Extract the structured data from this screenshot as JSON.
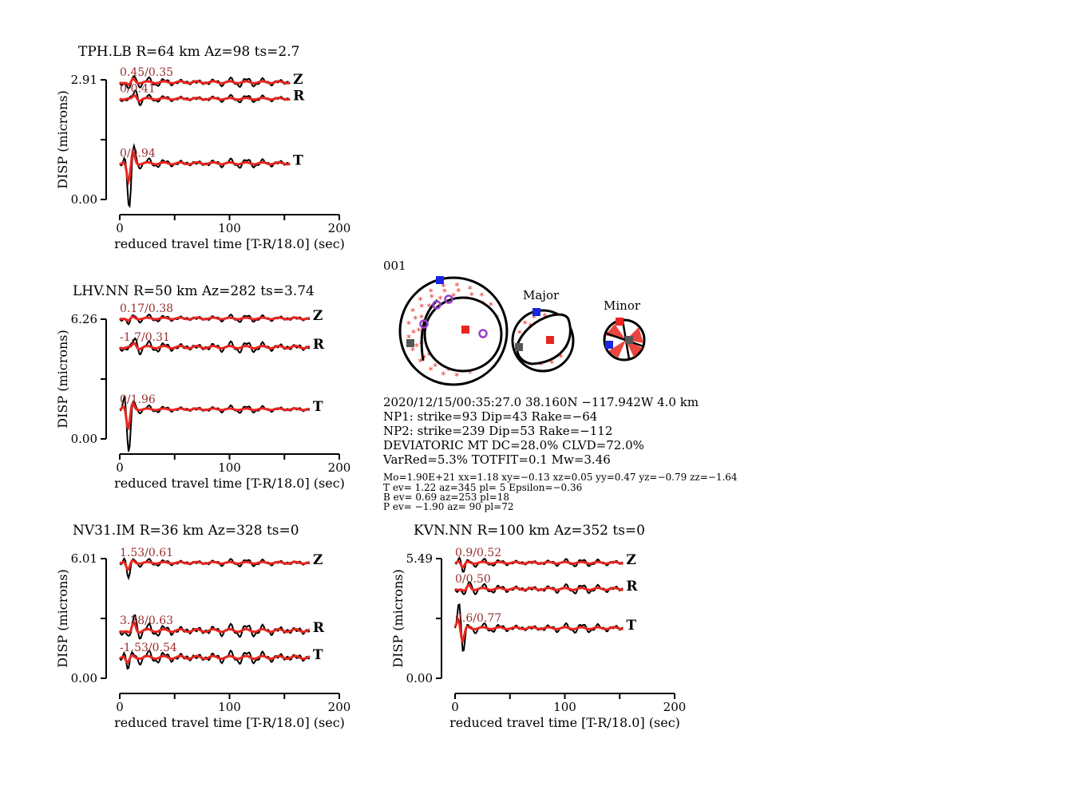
{
  "colors": {
    "observed": "#000000",
    "synthetic": "#e8251f",
    "shift_text": "#9b2d2d",
    "t_axis": "#1b26e0",
    "p_axis": "#e8251f",
    "b_axis": "#555555",
    "first_motion": "#9a3fc7"
  },
  "chart_data": [
    {
      "type": "line",
      "station": "TPH.LB",
      "title": "TPH.LB R=64 km Az=98 ts=2.7",
      "ylabel": "DISP (microns)",
      "xlabel": "reduced travel time [T-R/18.0] (sec)",
      "xlim": [
        0,
        200
      ],
      "xticks": [
        "0",
        "100",
        "200"
      ],
      "ylim": [
        0,
        2.91
      ],
      "yticks": [
        "0.00",
        "2.91"
      ],
      "trace_end": 155,
      "components": [
        {
          "name": "Z",
          "shift_label": "0.45/0.35",
          "baseline": 2.85
        },
        {
          "name": "R",
          "shift_label": "0/0.41",
          "baseline": 2.45
        },
        {
          "name": "T",
          "shift_label": "0/0.94",
          "baseline": 0.88
        }
      ]
    },
    {
      "type": "line",
      "station": "LHV.NN",
      "title": "LHV.NN R=50 km Az=282 ts=3.74",
      "ylabel": "DISP (microns)",
      "xlabel": "reduced travel time [T-R/18.0] (sec)",
      "xlim": [
        0,
        200
      ],
      "xticks": [
        "0",
        "100",
        "200"
      ],
      "ylim": [
        0,
        6.26
      ],
      "yticks": [
        "0.00",
        "6.26"
      ],
      "trace_end": 173,
      "components": [
        {
          "name": "Z",
          "shift_label": "0.17/0.38",
          "baseline": 6.3
        },
        {
          "name": "R",
          "shift_label": "-1.7/0.31",
          "baseline": 4.8
        },
        {
          "name": "T",
          "shift_label": "0/1.96",
          "baseline": 1.55
        }
      ]
    },
    {
      "type": "line",
      "station": "NV31.IM",
      "title": "NV31.IM R=36 km Az=328 ts=0",
      "ylabel": "DISP (microns)",
      "xlabel": "reduced travel time [T-R/18.0] (sec)",
      "xlim": [
        0,
        200
      ],
      "xticks": [
        "0",
        "100",
        "200"
      ],
      "ylim": [
        0,
        6.01
      ],
      "yticks": [
        "0.00",
        "6.01"
      ],
      "trace_end": 173,
      "components": [
        {
          "name": "Z",
          "shift_label": "1.53/0.61",
          "baseline": 5.8
        },
        {
          "name": "R",
          "shift_label": "3.38/0.63",
          "baseline": 2.4
        },
        {
          "name": "T",
          "shift_label": "-1.53/0.54",
          "baseline": 1.05
        }
      ]
    },
    {
      "type": "line",
      "station": "KVN.NN",
      "title": "KVN.NN R=100 km Az=352 ts=0",
      "ylabel": "DISP (microns)",
      "xlabel": "reduced travel time [T-R/18.0] (sec)",
      "xlim": [
        0,
        200
      ],
      "xticks": [
        "0",
        "100",
        "200"
      ],
      "ylim": [
        0,
        5.49
      ],
      "yticks": [
        "0.00",
        "5.49"
      ],
      "trace_end": 153,
      "components": [
        {
          "name": "Z",
          "shift_label": "0.9/0.52",
          "baseline": 5.3
        },
        {
          "name": "R",
          "shift_label": "0/0.50",
          "baseline": 4.1
        },
        {
          "name": "T",
          "shift_label": "0.6/0.77",
          "baseline": 2.3
        }
      ]
    }
  ],
  "run_id": "001",
  "mechanism": {
    "major_label": "Major",
    "minor_label": "Minor"
  },
  "solution": {
    "line1": "2020/12/15/00:35:27.0 38.160N −117.942W 4.0 km",
    "line2": "NP1: strike=93 Dip=43 Rake=−64",
    "line3": "NP2: strike=239 Dip=53 Rake=−112",
    "line4": "DEVIATORIC MT DC=28.0% CLVD=72.0%",
    "line5": "VarRed=5.3% TOTFIT=0.1 Mw=3.46",
    "line6": "Mo=1.90E+21 xx=1.18 xy=−0.13 xz=0.05 yy=0.47 yz=−0.79 zz=−1.64",
    "line7": "T ev=  1.22 az=345 pl= 5 Epsilon=−0.36",
    "line8": "B ev=  0.69 az=253 pl=18",
    "line9": "P ev= −1.90 az= 90 pl=72"
  }
}
